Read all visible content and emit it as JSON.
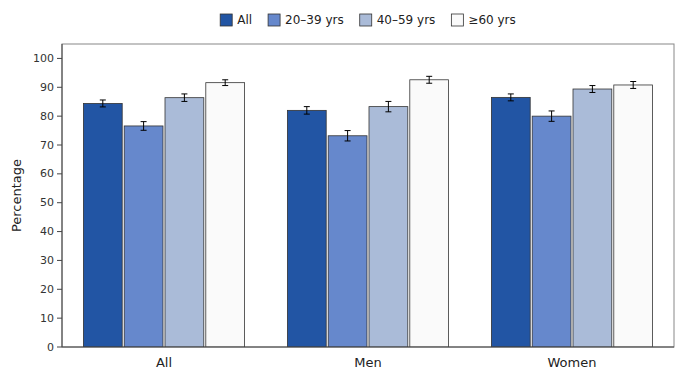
{
  "chart_data": {
    "type": "bar",
    "categories": [
      "All",
      "Men",
      "Women"
    ],
    "series": [
      {
        "name": "All",
        "color": "#2255a4",
        "values": [
          84.4,
          82.0,
          86.5
        ],
        "errors": [
          1.2,
          1.3,
          1.2
        ]
      },
      {
        "name": "20–39 yrs",
        "color": "#6688cc",
        "values": [
          76.6,
          73.2,
          80.0
        ],
        "errors": [
          1.5,
          1.8,
          1.8
        ]
      },
      {
        "name": "40–59 yrs",
        "color": "#aabbd8",
        "values": [
          86.4,
          83.3,
          89.4
        ],
        "errors": [
          1.3,
          1.8,
          1.2
        ]
      },
      {
        "name": "≥60 yrs",
        "color": "#fafafa",
        "values": [
          91.6,
          92.6,
          90.8
        ],
        "errors": [
          1.0,
          1.2,
          1.2
        ]
      }
    ],
    "ylabel": "Percentage",
    "ylim": [
      0,
      105
    ],
    "yticks": [
      0,
      10,
      20,
      30,
      40,
      50,
      60,
      70,
      80,
      90,
      100
    ],
    "grid": false,
    "legend": "top"
  }
}
